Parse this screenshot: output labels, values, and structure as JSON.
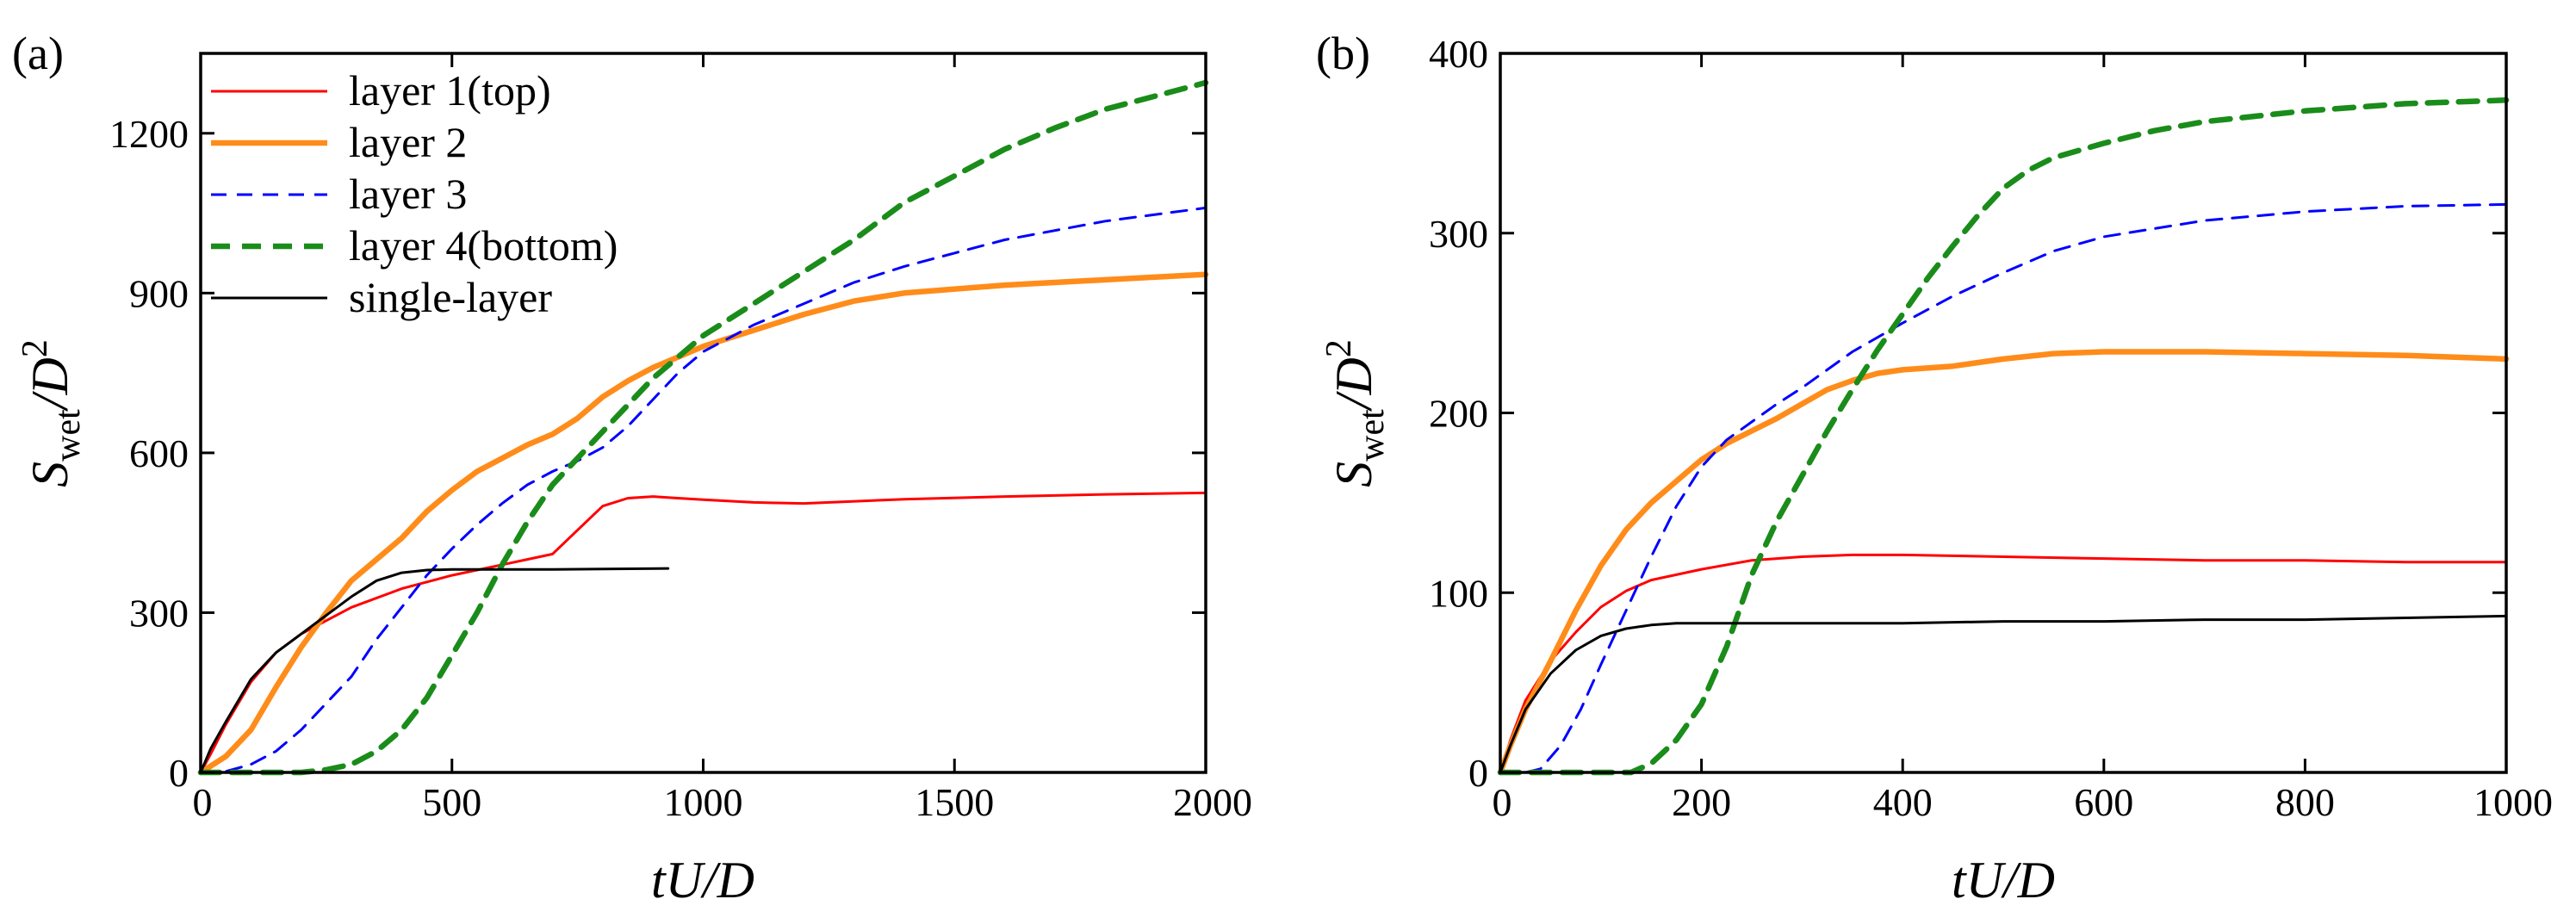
{
  "chart_data": [
    {
      "type": "line",
      "panel_label": "(a)",
      "xlabel": "tU/D",
      "ylabel": "S_wet/D^2",
      "ylabel_parts": {
        "main": "S",
        "sub": "wet",
        "slash": "/",
        "var": "D",
        "sup": "2"
      },
      "xlabel_parts": {
        "t": "t",
        "u": "U",
        "slash": "/",
        "d": "D"
      },
      "xlim": [
        0,
        2000
      ],
      "ylim": [
        0,
        1350
      ],
      "xticks": [
        0,
        500,
        1000,
        1500,
        2000
      ],
      "yticks": [
        0,
        300,
        600,
        900,
        1200
      ],
      "grid": false,
      "legend": "top-left",
      "series": [
        {
          "name": "layer 1(top)",
          "color": "#ff0000",
          "style": "solid",
          "weight": "thin",
          "x": [
            0,
            20,
            50,
            100,
            150,
            200,
            250,
            300,
            400,
            500,
            600,
            650,
            700,
            750,
            800,
            850,
            900,
            950,
            1000,
            1100,
            1200,
            1400,
            1600,
            1800,
            2000
          ],
          "y": [
            0,
            35,
            90,
            170,
            225,
            260,
            285,
            310,
            345,
            370,
            390,
            400,
            410,
            455,
            500,
            515,
            518,
            515,
            512,
            507,
            505,
            513,
            518,
            522,
            525
          ]
        },
        {
          "name": "layer 2",
          "color": "#ff8c1a",
          "style": "solid",
          "weight": "thick",
          "x": [
            0,
            50,
            100,
            150,
            200,
            250,
            300,
            350,
            400,
            450,
            500,
            550,
            600,
            650,
            700,
            750,
            800,
            850,
            900,
            950,
            1000,
            1100,
            1200,
            1300,
            1400,
            1600,
            1800,
            2000
          ],
          "y": [
            0,
            30,
            80,
            160,
            235,
            300,
            360,
            400,
            440,
            490,
            530,
            565,
            590,
            615,
            635,
            665,
            705,
            735,
            760,
            780,
            800,
            830,
            860,
            885,
            900,
            915,
            925,
            935
          ]
        },
        {
          "name": "layer 3",
          "color": "#0000ff",
          "style": "dashed",
          "weight": "thin",
          "x": [
            0,
            50,
            100,
            150,
            200,
            250,
            300,
            350,
            400,
            450,
            500,
            550,
            600,
            650,
            700,
            750,
            800,
            850,
            900,
            950,
            1000,
            1100,
            1200,
            1300,
            1400,
            1500,
            1600,
            1800,
            2000
          ],
          "y": [
            0,
            2,
            15,
            40,
            80,
            130,
            180,
            250,
            310,
            370,
            420,
            465,
            505,
            540,
            565,
            585,
            610,
            650,
            700,
            750,
            790,
            840,
            880,
            920,
            950,
            975,
            1000,
            1035,
            1060
          ]
        },
        {
          "name": "layer 4(bottom)",
          "color": "#1a8c1a",
          "style": "dashed",
          "weight": "thick",
          "x": [
            0,
            200,
            250,
            300,
            350,
            400,
            450,
            500,
            550,
            600,
            650,
            700,
            750,
            800,
            850,
            900,
            950,
            1000,
            1100,
            1200,
            1300,
            1400,
            1500,
            1600,
            1700,
            1800,
            1900,
            2000
          ],
          "y": [
            0,
            0,
            5,
            15,
            40,
            80,
            140,
            220,
            300,
            390,
            470,
            540,
            590,
            640,
            690,
            740,
            780,
            820,
            880,
            940,
            1000,
            1070,
            1120,
            1170,
            1210,
            1245,
            1270,
            1295
          ]
        },
        {
          "name": "single-layer",
          "color": "#000000",
          "style": "solid",
          "weight": "thin",
          "x": [
            0,
            20,
            50,
            100,
            150,
            200,
            250,
            300,
            350,
            400,
            450,
            500,
            600,
            700,
            800,
            930
          ],
          "y": [
            0,
            45,
            95,
            175,
            225,
            260,
            295,
            330,
            360,
            375,
            380,
            381,
            381,
            381,
            382,
            383
          ]
        }
      ]
    },
    {
      "type": "line",
      "panel_label": "(b)",
      "xlabel": "tU/D",
      "ylabel": "S_wet/D^2",
      "ylabel_parts": {
        "main": "S",
        "sub": "wet",
        "slash": "/",
        "var": "D",
        "sup": "2"
      },
      "xlabel_parts": {
        "t": "t",
        "u": "U",
        "slash": "/",
        "d": "D"
      },
      "xlim": [
        0,
        1000
      ],
      "ylim": [
        0,
        400
      ],
      "xticks": [
        0,
        200,
        400,
        600,
        800,
        1000
      ],
      "yticks": [
        0,
        100,
        200,
        300,
        400
      ],
      "grid": false,
      "legend": "none",
      "series": [
        {
          "name": "layer 1(top)",
          "color": "#ff0000",
          "style": "solid",
          "weight": "thin",
          "x": [
            0,
            10,
            25,
            50,
            75,
            100,
            125,
            150,
            200,
            250,
            300,
            350,
            400,
            500,
            600,
            700,
            800,
            900,
            1000
          ],
          "y": [
            0,
            18,
            40,
            62,
            78,
            92,
            101,
            107,
            113,
            118,
            120,
            121,
            121,
            120,
            119,
            118,
            118,
            117,
            117
          ]
        },
        {
          "name": "layer 2",
          "color": "#ff8c1a",
          "style": "solid",
          "weight": "thick",
          "x": [
            0,
            10,
            25,
            50,
            75,
            100,
            125,
            150,
            175,
            200,
            225,
            250,
            275,
            300,
            325,
            350,
            375,
            400,
            450,
            500,
            550,
            600,
            700,
            800,
            900,
            1000
          ],
          "y": [
            0,
            15,
            35,
            62,
            90,
            115,
            135,
            150,
            162,
            174,
            183,
            190,
            197,
            205,
            213,
            218,
            222,
            224,
            226,
            230,
            233,
            234,
            234,
            233,
            232,
            230
          ]
        },
        {
          "name": "layer 3",
          "color": "#0000ff",
          "style": "dashed",
          "weight": "thin",
          "x": [
            0,
            25,
            40,
            60,
            80,
            100,
            125,
            150,
            175,
            200,
            225,
            250,
            275,
            300,
            325,
            350,
            375,
            400,
            450,
            500,
            550,
            600,
            700,
            800,
            900,
            1000
          ],
          "y": [
            0,
            0,
            2,
            15,
            35,
            60,
            90,
            120,
            148,
            170,
            185,
            195,
            205,
            214,
            224,
            234,
            242,
            250,
            265,
            278,
            290,
            298,
            307,
            312,
            315,
            316
          ]
        },
        {
          "name": "layer 4(bottom)",
          "color": "#1a8c1a",
          "style": "dashed",
          "weight": "thick",
          "x": [
            0,
            130,
            150,
            175,
            200,
            225,
            250,
            275,
            300,
            325,
            350,
            375,
            400,
            425,
            450,
            475,
            500,
            525,
            550,
            600,
            650,
            700,
            800,
            900,
            1000
          ],
          "y": [
            0,
            0,
            5,
            18,
            38,
            70,
            110,
            140,
            165,
            190,
            213,
            235,
            255,
            275,
            293,
            310,
            325,
            335,
            342,
            350,
            357,
            362,
            368,
            372,
            374
          ]
        },
        {
          "name": "single-layer",
          "color": "#000000",
          "style": "solid",
          "weight": "thin",
          "x": [
            0,
            10,
            25,
            50,
            75,
            100,
            125,
            150,
            175,
            200,
            300,
            400,
            500,
            600,
            700,
            800,
            900,
            1000
          ],
          "y": [
            0,
            15,
            35,
            55,
            68,
            76,
            80,
            82,
            83,
            83,
            83,
            83,
            84,
            84,
            85,
            85,
            86,
            87
          ]
        }
      ]
    }
  ]
}
